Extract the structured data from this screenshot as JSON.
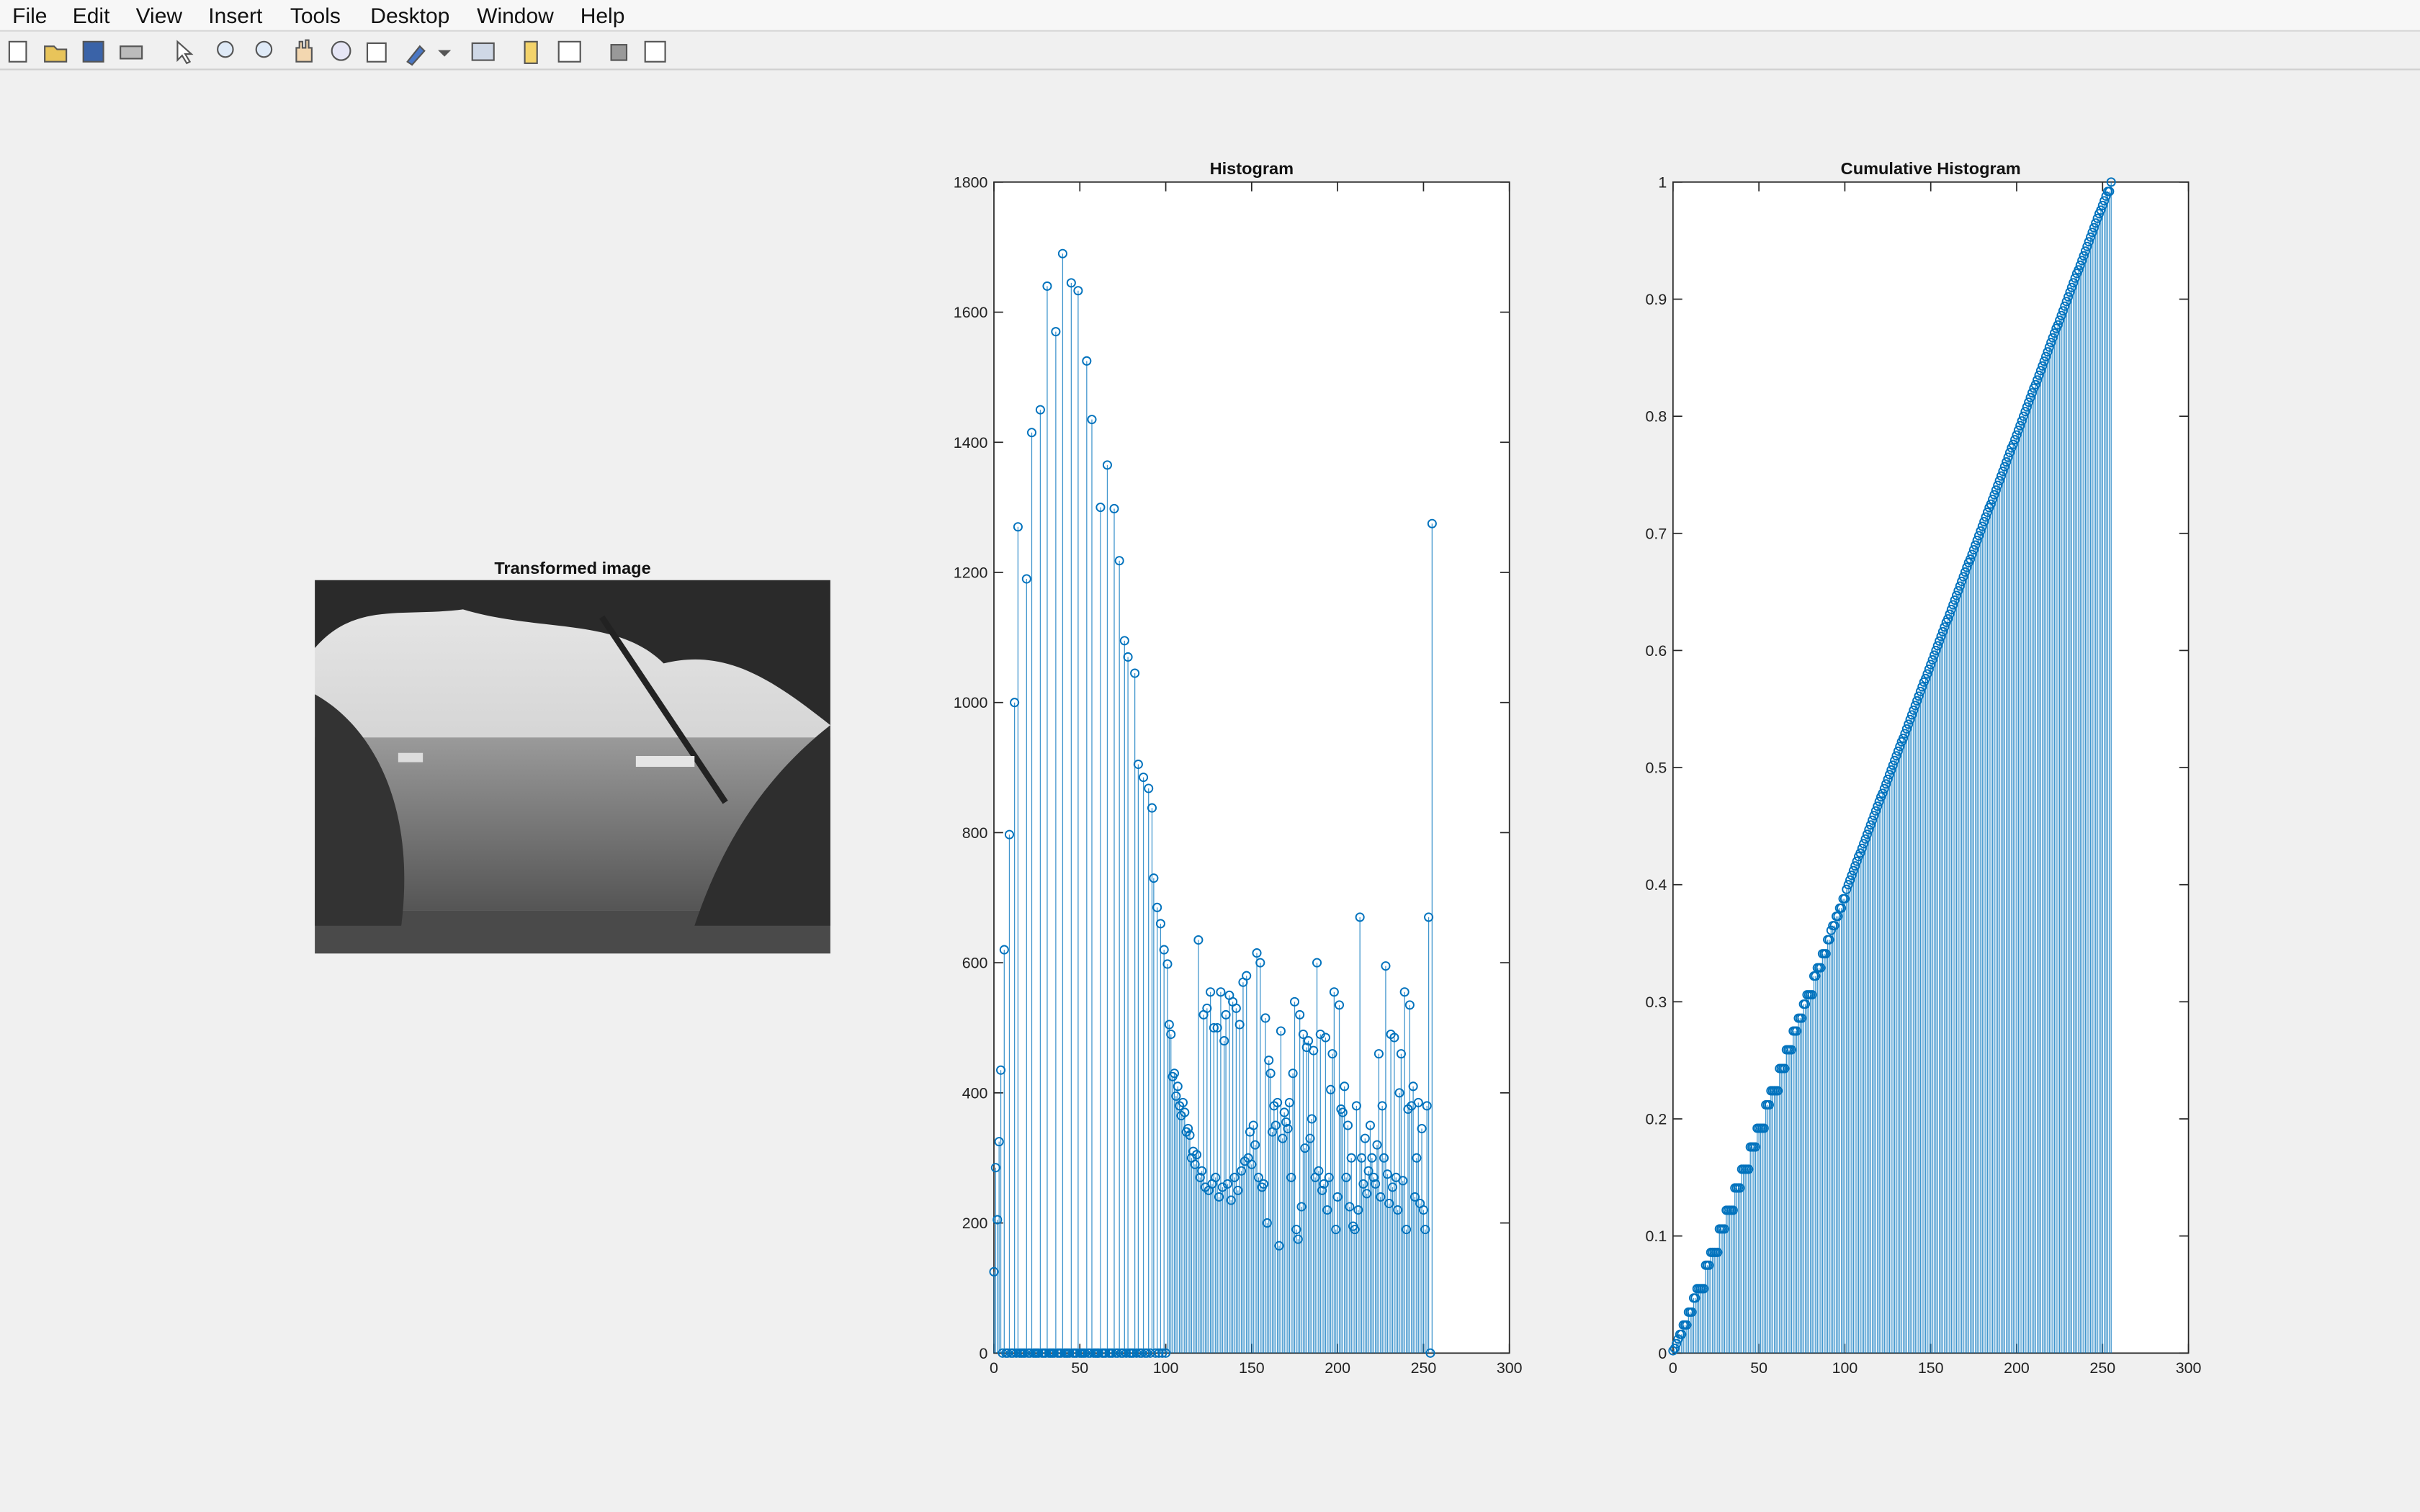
{
  "menu": [
    "File",
    "Edit",
    "View",
    "Insert",
    "Tools",
    "Desktop",
    "Window",
    "Help"
  ],
  "image_title": "Transformed image",
  "chart_data": [
    {
      "type": "stem",
      "title": "Histogram",
      "color": "#0072bd",
      "x": [
        0,
        1,
        2,
        3,
        4,
        5,
        6,
        7,
        8,
        9,
        10,
        11,
        12,
        13,
        14,
        15,
        16,
        17,
        18,
        19,
        20,
        21,
        22,
        23,
        24,
        25,
        26,
        27,
        28,
        29,
        30,
        31,
        32,
        33,
        34,
        35,
        36,
        37,
        38,
        39,
        40,
        41,
        42,
        43,
        44,
        45,
        46,
        47,
        48,
        49,
        50,
        51,
        52,
        53,
        54,
        55,
        56,
        57,
        58,
        59,
        60,
        61,
        62,
        63,
        64,
        65,
        66,
        67,
        68,
        69,
        70,
        71,
        72,
        73,
        74,
        75,
        76,
        77,
        78,
        79,
        80,
        81,
        82,
        83,
        84,
        85,
        86,
        87,
        88,
        89,
        90,
        91,
        92,
        93,
        94,
        95,
        96,
        97,
        98,
        99,
        100,
        101,
        102,
        103,
        104,
        105,
        106,
        107,
        108,
        109,
        110,
        111,
        112,
        113,
        114,
        115,
        116,
        117,
        118,
        119,
        120,
        121,
        122,
        123,
        124,
        125,
        126,
        127,
        128,
        129,
        130,
        131,
        132,
        133,
        134,
        135,
        136,
        137,
        138,
        139,
        140,
        141,
        142,
        143,
        144,
        145,
        146,
        147,
        148,
        149,
        150,
        151,
        152,
        153,
        154,
        155,
        156,
        157,
        158,
        159,
        160,
        161,
        162,
        163,
        164,
        165,
        166,
        167,
        168,
        169,
        170,
        171,
        172,
        173,
        174,
        175,
        176,
        177,
        178,
        179,
        180,
        181,
        182,
        183,
        184,
        185,
        186,
        187,
        188,
        189,
        190,
        191,
        192,
        193,
        194,
        195,
        196,
        197,
        198,
        199,
        200,
        201,
        202,
        203,
        204,
        205,
        206,
        207,
        208,
        209,
        210,
        211,
        212,
        213,
        214,
        215,
        216,
        217,
        218,
        219,
        220,
        221,
        222,
        223,
        224,
        225,
        226,
        227,
        228,
        229,
        230,
        231,
        232,
        233,
        234,
        235,
        236,
        237,
        238,
        239,
        240,
        241,
        242,
        243,
        244,
        245,
        246,
        247,
        248,
        249,
        250,
        251,
        252,
        253,
        254,
        255
      ],
      "values": [
        125,
        285,
        205,
        325,
        435,
        0,
        620,
        0,
        0,
        797,
        0,
        0,
        1000,
        0,
        1270,
        0,
        0,
        0,
        0,
        1190,
        0,
        0,
        1415,
        0,
        0,
        0,
        0,
        1450,
        0,
        0,
        0,
        1640,
        0,
        0,
        0,
        0,
        1570,
        0,
        0,
        0,
        1690,
        0,
        0,
        0,
        0,
        1645,
        0,
        0,
        0,
        1633,
        0,
        0,
        0,
        0,
        1525,
        0,
        0,
        1435,
        0,
        0,
        0,
        0,
        1300,
        0,
        0,
        0,
        1365,
        0,
        0,
        0,
        1298,
        0,
        0,
        1218,
        0,
        0,
        1095,
        0,
        1070,
        0,
        0,
        0,
        1045,
        0,
        905,
        0,
        0,
        885,
        0,
        0,
        868,
        0,
        838,
        730,
        0,
        685,
        0,
        660,
        0,
        620,
        0,
        598,
        505,
        490,
        425,
        430,
        395,
        410,
        380,
        365,
        385,
        370,
        340,
        345,
        335,
        300,
        310,
        290,
        305,
        635,
        270,
        280,
        520,
        255,
        530,
        250,
        555,
        260,
        500,
        270,
        500,
        240,
        555,
        255,
        480,
        520,
        260,
        550,
        235,
        540,
        270,
        530,
        250,
        505,
        280,
        570,
        295,
        580,
        300,
        340,
        290,
        350,
        320,
        615,
        270,
        600,
        255,
        260,
        515,
        200,
        450,
        430,
        340,
        380,
        350,
        385,
        165,
        495,
        330,
        370,
        355,
        345,
        385,
        270,
        430,
        540,
        190,
        175,
        520,
        225,
        490,
        315,
        470,
        480,
        330,
        360,
        465,
        270,
        600,
        280,
        490,
        250,
        260,
        485,
        220,
        270,
        405,
        460,
        555,
        190,
        240,
        535,
        375,
        370,
        410,
        270,
        350,
        225,
        300,
        195,
        190,
        380,
        220,
        670,
        300,
        260,
        330,
        245,
        280,
        350,
        300,
        270,
        260,
        320,
        460,
        240,
        380,
        300,
        595,
        275,
        230,
        490,
        255,
        485,
        270,
        220,
        400,
        460,
        265,
        555,
        190,
        375,
        535,
        380,
        410,
        240,
        300,
        385,
        230,
        345,
        220,
        190,
        380,
        670,
        0,
        1275
      ],
      "xlim": [
        0,
        300
      ],
      "xticks": [
        0,
        50,
        100,
        150,
        200,
        250,
        300
      ],
      "ylim": [
        0,
        1800
      ],
      "yticks": [
        0,
        200,
        400,
        600,
        800,
        1000,
        1200,
        1400,
        1600,
        1800
      ]
    },
    {
      "type": "stem",
      "title": "Cumulative Histogram",
      "color": "#0072bd",
      "x": [
        0,
        1,
        2,
        3,
        4,
        5,
        6,
        7,
        8,
        9,
        10,
        11,
        12,
        13,
        14,
        15,
        16,
        17,
        18,
        19,
        20,
        21,
        22,
        23,
        24,
        25,
        26,
        27,
        28,
        29,
        30,
        31,
        32,
        33,
        34,
        35,
        36,
        37,
        38,
        39,
        40,
        41,
        42,
        43,
        44,
        45,
        46,
        47,
        48,
        49,
        50,
        51,
        52,
        53,
        54,
        55,
        56,
        57,
        58,
        59,
        60,
        61,
        62,
        63,
        64,
        65,
        66,
        67,
        68,
        69,
        70,
        71,
        72,
        73,
        74,
        75,
        76,
        77,
        78,
        79,
        80,
        81,
        82,
        83,
        84,
        85,
        86,
        87,
        88,
        89,
        90,
        91,
        92,
        93,
        94,
        95,
        96,
        97,
        98,
        99,
        100,
        101,
        102,
        103,
        104,
        105,
        106,
        107,
        108,
        109,
        110,
        111,
        112,
        113,
        114,
        115,
        116,
        117,
        118,
        119,
        120,
        121,
        122,
        123,
        124,
        125,
        126,
        127,
        128,
        129,
        130,
        131,
        132,
        133,
        134,
        135,
        136,
        137,
        138,
        139,
        140,
        141,
        142,
        143,
        144,
        145,
        146,
        147,
        148,
        149,
        150,
        151,
        152,
        153,
        154,
        155,
        156,
        157,
        158,
        159,
        160,
        161,
        162,
        163,
        164,
        165,
        166,
        167,
        168,
        169,
        170,
        171,
        172,
        173,
        174,
        175,
        176,
        177,
        178,
        179,
        180,
        181,
        182,
        183,
        184,
        185,
        186,
        187,
        188,
        189,
        190,
        191,
        192,
        193,
        194,
        195,
        196,
        197,
        198,
        199,
        200,
        201,
        202,
        203,
        204,
        205,
        206,
        207,
        208,
        209,
        210,
        211,
        212,
        213,
        214,
        215,
        216,
        217,
        218,
        219,
        220,
        221,
        222,
        223,
        224,
        225,
        226,
        227,
        228,
        229,
        230,
        231,
        232,
        233,
        234,
        235,
        236,
        237,
        238,
        239,
        240,
        241,
        242,
        243,
        244,
        245,
        246,
        247,
        248,
        249,
        250,
        251,
        252,
        253,
        254,
        255
      ],
      "values": [
        0.002,
        0.004,
        0.008,
        0.012,
        0.016,
        0.016,
        0.024,
        0.024,
        0.024,
        0.035,
        0.035,
        0.035,
        0.047,
        0.047,
        0.055,
        0.055,
        0.055,
        0.055,
        0.055,
        0.075,
        0.075,
        0.075,
        0.086,
        0.086,
        0.086,
        0.086,
        0.086,
        0.106,
        0.106,
        0.106,
        0.106,
        0.122,
        0.122,
        0.122,
        0.122,
        0.122,
        0.141,
        0.141,
        0.141,
        0.141,
        0.157,
        0.157,
        0.157,
        0.157,
        0.157,
        0.176,
        0.176,
        0.176,
        0.176,
        0.192,
        0.192,
        0.192,
        0.192,
        0.192,
        0.212,
        0.212,
        0.212,
        0.224,
        0.224,
        0.224,
        0.224,
        0.224,
        0.243,
        0.243,
        0.243,
        0.243,
        0.259,
        0.259,
        0.259,
        0.259,
        0.275,
        0.275,
        0.275,
        0.286,
        0.286,
        0.286,
        0.298,
        0.298,
        0.306,
        0.306,
        0.306,
        0.306,
        0.322,
        0.322,
        0.329,
        0.329,
        0.329,
        0.341,
        0.341,
        0.341,
        0.353,
        0.353,
        0.361,
        0.365,
        0.365,
        0.373,
        0.373,
        0.38,
        0.38,
        0.388,
        0.388,
        0.396,
        0.4,
        0.404,
        0.408,
        0.412,
        0.416,
        0.42,
        0.424,
        0.427,
        0.431,
        0.435,
        0.439,
        0.443,
        0.447,
        0.451,
        0.455,
        0.459,
        0.463,
        0.467,
        0.471,
        0.475,
        0.478,
        0.482,
        0.486,
        0.49,
        0.494,
        0.498,
        0.502,
        0.506,
        0.51,
        0.514,
        0.518,
        0.522,
        0.525,
        0.529,
        0.533,
        0.537,
        0.541,
        0.545,
        0.549,
        0.553,
        0.557,
        0.561,
        0.565,
        0.569,
        0.573,
        0.576,
        0.58,
        0.584,
        0.588,
        0.592,
        0.596,
        0.6,
        0.604,
        0.608,
        0.612,
        0.616,
        0.62,
        0.624,
        0.627,
        0.631,
        0.635,
        0.639,
        0.643,
        0.647,
        0.651,
        0.655,
        0.659,
        0.663,
        0.667,
        0.671,
        0.675,
        0.678,
        0.682,
        0.686,
        0.69,
        0.694,
        0.698,
        0.702,
        0.706,
        0.71,
        0.714,
        0.718,
        0.722,
        0.725,
        0.729,
        0.733,
        0.737,
        0.741,
        0.745,
        0.749,
        0.753,
        0.757,
        0.761,
        0.765,
        0.769,
        0.773,
        0.776,
        0.78,
        0.784,
        0.788,
        0.792,
        0.796,
        0.8,
        0.804,
        0.808,
        0.812,
        0.816,
        0.82,
        0.824,
        0.827,
        0.831,
        0.835,
        0.839,
        0.843,
        0.847,
        0.851,
        0.855,
        0.859,
        0.863,
        0.867,
        0.871,
        0.875,
        0.878,
        0.882,
        0.886,
        0.89,
        0.894,
        0.898,
        0.902,
        0.906,
        0.91,
        0.914,
        0.918,
        0.922,
        0.925,
        0.929,
        0.933,
        0.937,
        0.941,
        0.945,
        0.949,
        0.953,
        0.957,
        0.961,
        0.965,
        0.969,
        0.973,
        0.976,
        0.98,
        0.984,
        0.988,
        0.992,
        0.992,
        1
      ],
      "xlim": [
        0,
        300
      ],
      "xticks": [
        0,
        50,
        100,
        150,
        200,
        250,
        300
      ],
      "ylim": [
        0,
        1
      ],
      "yticks": [
        0,
        0.1,
        0.2,
        0.3,
        0.4,
        0.5,
        0.6,
        0.7,
        0.8,
        0.9,
        1
      ]
    }
  ]
}
